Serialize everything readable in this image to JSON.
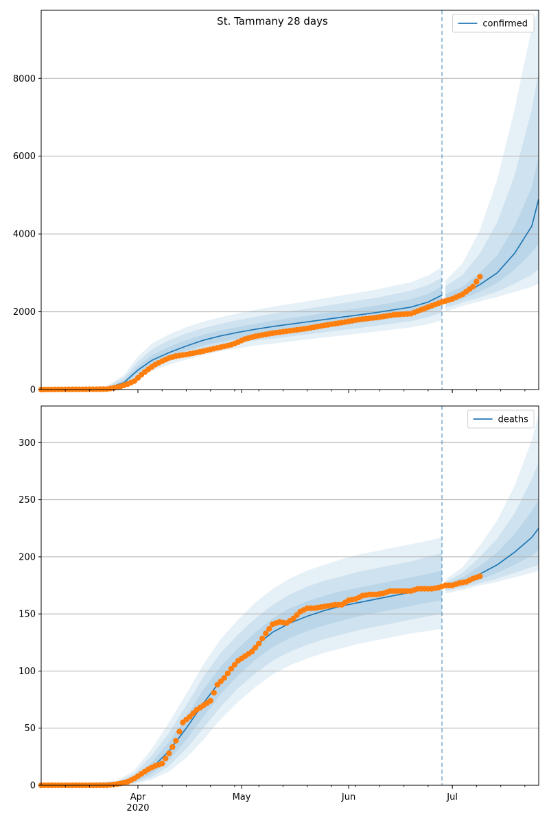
{
  "figure": {
    "title": "St. Tammany 28 days"
  },
  "chart_data": [
    {
      "type": "line",
      "panel": "top",
      "title": "St. Tammany 28 days",
      "legend": {
        "label": "confirmed",
        "placement": "top-right"
      },
      "x_ticks": [
        {
          "day": 61,
          "label": "Apr"
        },
        {
          "day": 91,
          "label": "May"
        },
        {
          "day": 122,
          "label": "Jun"
        },
        {
          "day": 152,
          "label": "Jul"
        }
      ],
      "x_sublabel": {
        "day": 61,
        "label": "2020"
      },
      "xlim": [
        33,
        177
      ],
      "ylim": [
        0,
        9750
      ],
      "y_ticks": [
        {
          "value": 0,
          "label": "0"
        },
        {
          "value": 2000,
          "label": "2000"
        },
        {
          "value": 4000,
          "label": "4000"
        },
        {
          "value": 6000,
          "label": "6000"
        },
        {
          "value": 8000,
          "label": "8000"
        }
      ],
      "forecast_start_day": 149,
      "model": {
        "x": [
          33,
          52,
          57,
          61,
          65,
          70,
          75,
          80,
          85,
          90,
          95,
          100,
          110,
          120,
          130,
          140,
          145,
          149,
          150,
          155,
          160,
          165,
          170,
          175,
          177
        ],
        "median": [
          0,
          30,
          180,
          500,
          750,
          950,
          1120,
          1270,
          1380,
          1470,
          1550,
          1620,
          1740,
          1860,
          1980,
          2120,
          2250,
          2430,
          2300,
          2450,
          2700,
          3000,
          3500,
          4200,
          4900
        ],
        "band_50_lo": [
          0,
          20,
          140,
          420,
          650,
          830,
          990,
          1130,
          1230,
          1310,
          1380,
          1440,
          1550,
          1660,
          1780,
          1910,
          2030,
          2180,
          2200,
          2330,
          2520,
          2740,
          3080,
          3520,
          3750
        ],
        "band_50_hi": [
          0,
          45,
          240,
          600,
          880,
          1100,
          1270,
          1410,
          1520,
          1610,
          1690,
          1770,
          1900,
          2030,
          2160,
          2320,
          2460,
          2650,
          2450,
          2650,
          3000,
          3450,
          4200,
          5200,
          6000
        ],
        "band_80_lo": [
          0,
          12,
          110,
          360,
          570,
          740,
          880,
          1010,
          1110,
          1190,
          1260,
          1310,
          1420,
          1530,
          1640,
          1760,
          1860,
          1980,
          2100,
          2240,
          2370,
          2520,
          2720,
          2950,
          3100
        ],
        "band_80_hi": [
          0,
          65,
          310,
          720,
          1030,
          1270,
          1440,
          1580,
          1690,
          1790,
          1870,
          1950,
          2080,
          2220,
          2360,
          2540,
          2690,
          2880,
          2650,
          2950,
          3500,
          4300,
          5500,
          7200,
          8200
        ],
        "band_95_lo": [
          0,
          5,
          80,
          300,
          480,
          640,
          770,
          890,
          990,
          1060,
          1130,
          1180,
          1290,
          1390,
          1490,
          1600,
          1680,
          1780,
          2000,
          2150,
          2270,
          2380,
          2510,
          2640,
          2720
        ],
        "band_95_hi": [
          0,
          90,
          380,
          850,
          1180,
          1420,
          1600,
          1750,
          1860,
          1960,
          2050,
          2130,
          2270,
          2420,
          2570,
          2760,
          2930,
          3150,
          2800,
          3250,
          4100,
          5400,
          7200,
          9300,
          9800
        ]
      },
      "observed": {
        "x": [
          33,
          52,
          54,
          56,
          58,
          60,
          62,
          64,
          66,
          68,
          70,
          72,
          75,
          80,
          85,
          88,
          90,
          92,
          95,
          100,
          105,
          110,
          115,
          120,
          125,
          130,
          135,
          140,
          145,
          149,
          152,
          155,
          158,
          160
        ],
        "y": [
          0,
          10,
          40,
          80,
          140,
          220,
          380,
          520,
          640,
          730,
          810,
          860,
          900,
          990,
          1090,
          1150,
          1220,
          1300,
          1370,
          1450,
          1510,
          1570,
          1650,
          1720,
          1800,
          1850,
          1920,
          1950,
          2120,
          2250,
          2330,
          2450,
          2650,
          2900
        ]
      }
    },
    {
      "type": "line",
      "panel": "bottom",
      "legend": {
        "label": "deaths",
        "placement": "top-right"
      },
      "x_ticks": [
        {
          "day": 61,
          "label": "Apr"
        },
        {
          "day": 91,
          "label": "May"
        },
        {
          "day": 122,
          "label": "Jun"
        },
        {
          "day": 152,
          "label": "Jul"
        }
      ],
      "x_sublabel": {
        "day": 61,
        "label": "2020"
      },
      "xlim": [
        33,
        177
      ],
      "ylim": [
        0,
        332
      ],
      "y_ticks": [
        {
          "value": 0,
          "label": "0"
        },
        {
          "value": 50,
          "label": "50"
        },
        {
          "value": 100,
          "label": "100"
        },
        {
          "value": 150,
          "label": "150"
        },
        {
          "value": 200,
          "label": "200"
        },
        {
          "value": 250,
          "label": "250"
        },
        {
          "value": 300,
          "label": "300"
        }
      ],
      "forecast_start_day": 149,
      "model": {
        "x": [
          33,
          55,
          60,
          65,
          70,
          75,
          80,
          85,
          90,
          95,
          100,
          105,
          110,
          115,
          120,
          125,
          130,
          135,
          140,
          145,
          149,
          150,
          155,
          160,
          165,
          170,
          175,
          177
        ],
        "median": [
          0,
          1,
          5,
          15,
          30,
          50,
          72,
          92,
          108,
          122,
          134,
          142,
          148,
          153,
          157,
          160,
          163,
          166,
          169,
          172,
          174,
          174,
          178,
          185,
          193,
          204,
          217,
          225
        ],
        "band_50_lo": [
          0,
          0,
          3,
          10,
          22,
          40,
          60,
          80,
          96,
          110,
          121,
          129,
          135,
          140,
          144,
          148,
          151,
          154,
          157,
          160,
          162,
          172,
          175,
          180,
          186,
          193,
          201,
          206
        ],
        "band_50_hi": [
          0,
          2,
          7,
          20,
          38,
          60,
          84,
          104,
          120,
          134,
          146,
          155,
          161,
          166,
          170,
          173,
          176,
          179,
          182,
          185,
          188,
          176,
          182,
          192,
          204,
          220,
          240,
          250
        ],
        "band_80_lo": [
          0,
          0,
          2,
          7,
          17,
          32,
          50,
          69,
          85,
          98,
          109,
          117,
          123,
          128,
          132,
          136,
          139,
          142,
          145,
          148,
          150,
          170,
          173,
          177,
          181,
          186,
          191,
          193
        ],
        "band_80_hi": [
          0,
          3,
          10,
          26,
          46,
          70,
          95,
          116,
          132,
          146,
          158,
          167,
          174,
          179,
          183,
          187,
          190,
          193,
          196,
          200,
          203,
          178,
          186,
          200,
          216,
          238,
          268,
          283
        ],
        "band_95_lo": [
          0,
          0,
          1,
          5,
          12,
          24,
          40,
          58,
          73,
          86,
          97,
          105,
          111,
          116,
          120,
          124,
          127,
          130,
          133,
          135,
          137,
          168,
          171,
          175,
          178,
          182,
          186,
          188
        ],
        "band_95_hi": [
          0,
          4,
          13,
          32,
          55,
          80,
          106,
          128,
          145,
          160,
          172,
          181,
          188,
          193,
          198,
          202,
          205,
          208,
          211,
          214,
          217,
          180,
          191,
          210,
          232,
          262,
          302,
          325
        ]
      },
      "observed": {
        "x": [
          33,
          52,
          55,
          58,
          60,
          62,
          64,
          66,
          68,
          70,
          72,
          74,
          76,
          78,
          80,
          82,
          84,
          86,
          88,
          90,
          92,
          94,
          96,
          98,
          100,
          102,
          104,
          106,
          108,
          110,
          112,
          114,
          116,
          118,
          120,
          122,
          124,
          126,
          128,
          130,
          132,
          134,
          136,
          138,
          140,
          142,
          144,
          146,
          148,
          150,
          152,
          154,
          156,
          158,
          160
        ],
        "y": [
          0,
          0,
          1,
          3,
          6,
          10,
          14,
          17,
          19,
          28,
          39,
          55,
          60,
          66,
          70,
          74,
          88,
          94,
          102,
          109,
          113,
          117,
          124,
          133,
          141,
          143,
          142,
          146,
          152,
          155,
          155,
          156,
          157,
          158,
          158,
          162,
          163,
          166,
          167,
          167,
          168,
          170,
          170,
          170,
          170,
          172,
          172,
          172,
          173,
          175,
          175,
          177,
          178,
          181,
          183
        ]
      }
    }
  ]
}
